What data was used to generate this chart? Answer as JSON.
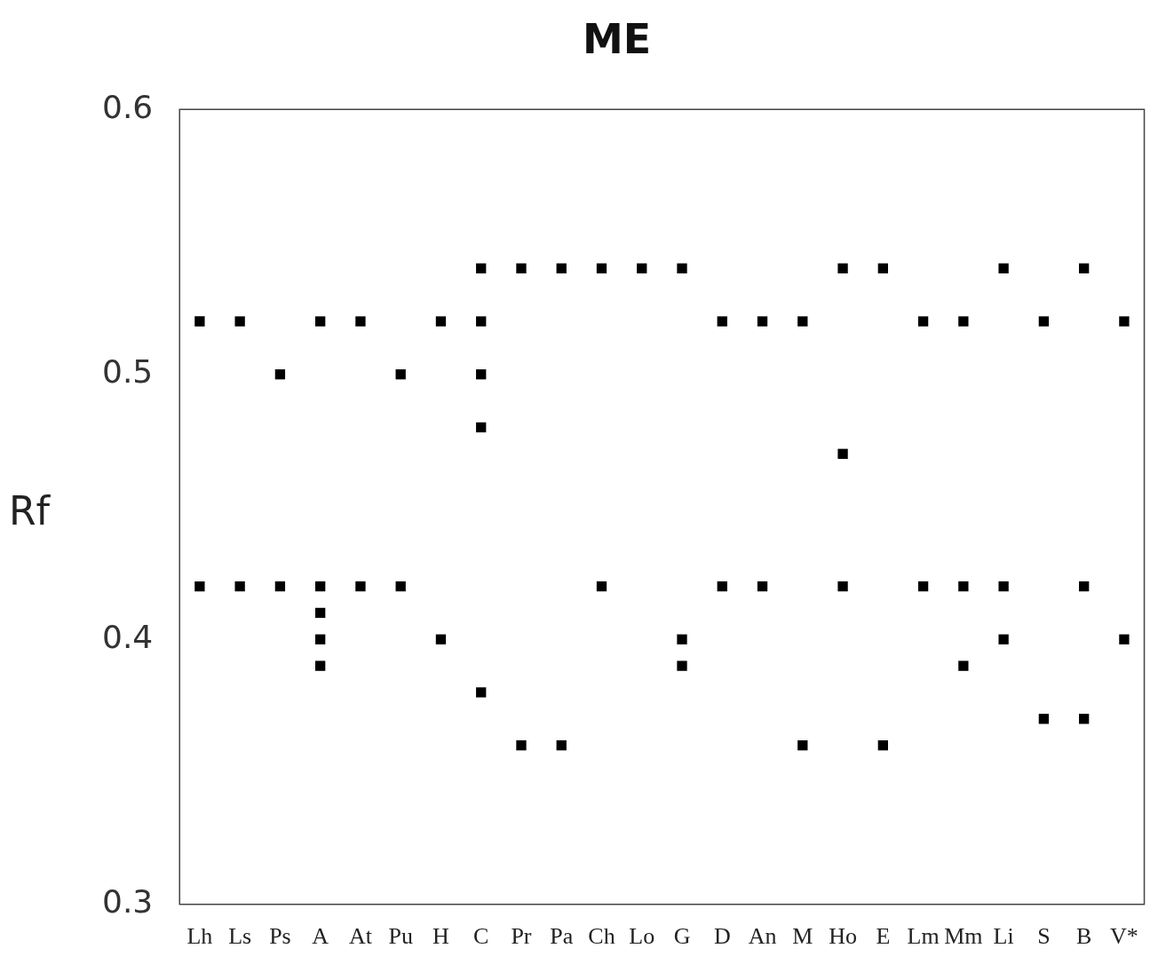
{
  "chart_data": {
    "type": "scatter",
    "title": "ME",
    "ylabel": "Rf",
    "categories": [
      "Lh",
      "Ls",
      "Ps",
      "A",
      "At",
      "Pu",
      "H",
      "C",
      "Pr",
      "Pa",
      "Ch",
      "Lo",
      "G",
      "D",
      "An",
      "M",
      "Ho",
      "E",
      "Lm",
      "Mm",
      "Li",
      "S",
      "B",
      "V*"
    ],
    "series": [
      {
        "color": "#000000",
        "x": [
          "Lh",
          "Lh",
          "Ls",
          "Ls",
          "Ps",
          "Ps",
          "A",
          "A",
          "A",
          "A",
          "A",
          "At",
          "At",
          "Pu",
          "Pu",
          "H",
          "H",
          "C",
          "C",
          "C",
          "C",
          "C",
          "Pr",
          "Pr",
          "Pa",
          "Pa",
          "Ch",
          "Ch",
          "Lo",
          "G",
          "G",
          "G",
          "D",
          "D",
          "An",
          "An",
          "M",
          "M",
          "Ho",
          "Ho",
          "Ho",
          "E",
          "E",
          "Lm",
          "Lm",
          "Mm",
          "Mm",
          "Mm",
          "Li",
          "Li",
          "Li",
          "S",
          "S",
          "B",
          "B",
          "B",
          "V*",
          "V*"
        ],
        "values": [
          0.52,
          0.42,
          0.52,
          0.42,
          0.5,
          0.42,
          0.52,
          0.42,
          0.41,
          0.4,
          0.39,
          0.52,
          0.42,
          0.5,
          0.42,
          0.52,
          0.4,
          0.54,
          0.52,
          0.5,
          0.48,
          0.38,
          0.54,
          0.36,
          0.54,
          0.36,
          0.54,
          0.42,
          0.54,
          0.54,
          0.4,
          0.39,
          0.52,
          0.42,
          0.52,
          0.42,
          0.52,
          0.36,
          0.54,
          0.47,
          0.42,
          0.54,
          0.36,
          0.52,
          0.42,
          0.52,
          0.42,
          0.39,
          0.54,
          0.42,
          0.4,
          0.52,
          0.37,
          0.54,
          0.42,
          0.37,
          0.52,
          0.4
        ]
      }
    ],
    "ylim": [
      0.3,
      0.6
    ],
    "yticks": [
      0.3,
      0.4,
      0.5,
      0.6
    ],
    "grid": false,
    "legend": false
  }
}
